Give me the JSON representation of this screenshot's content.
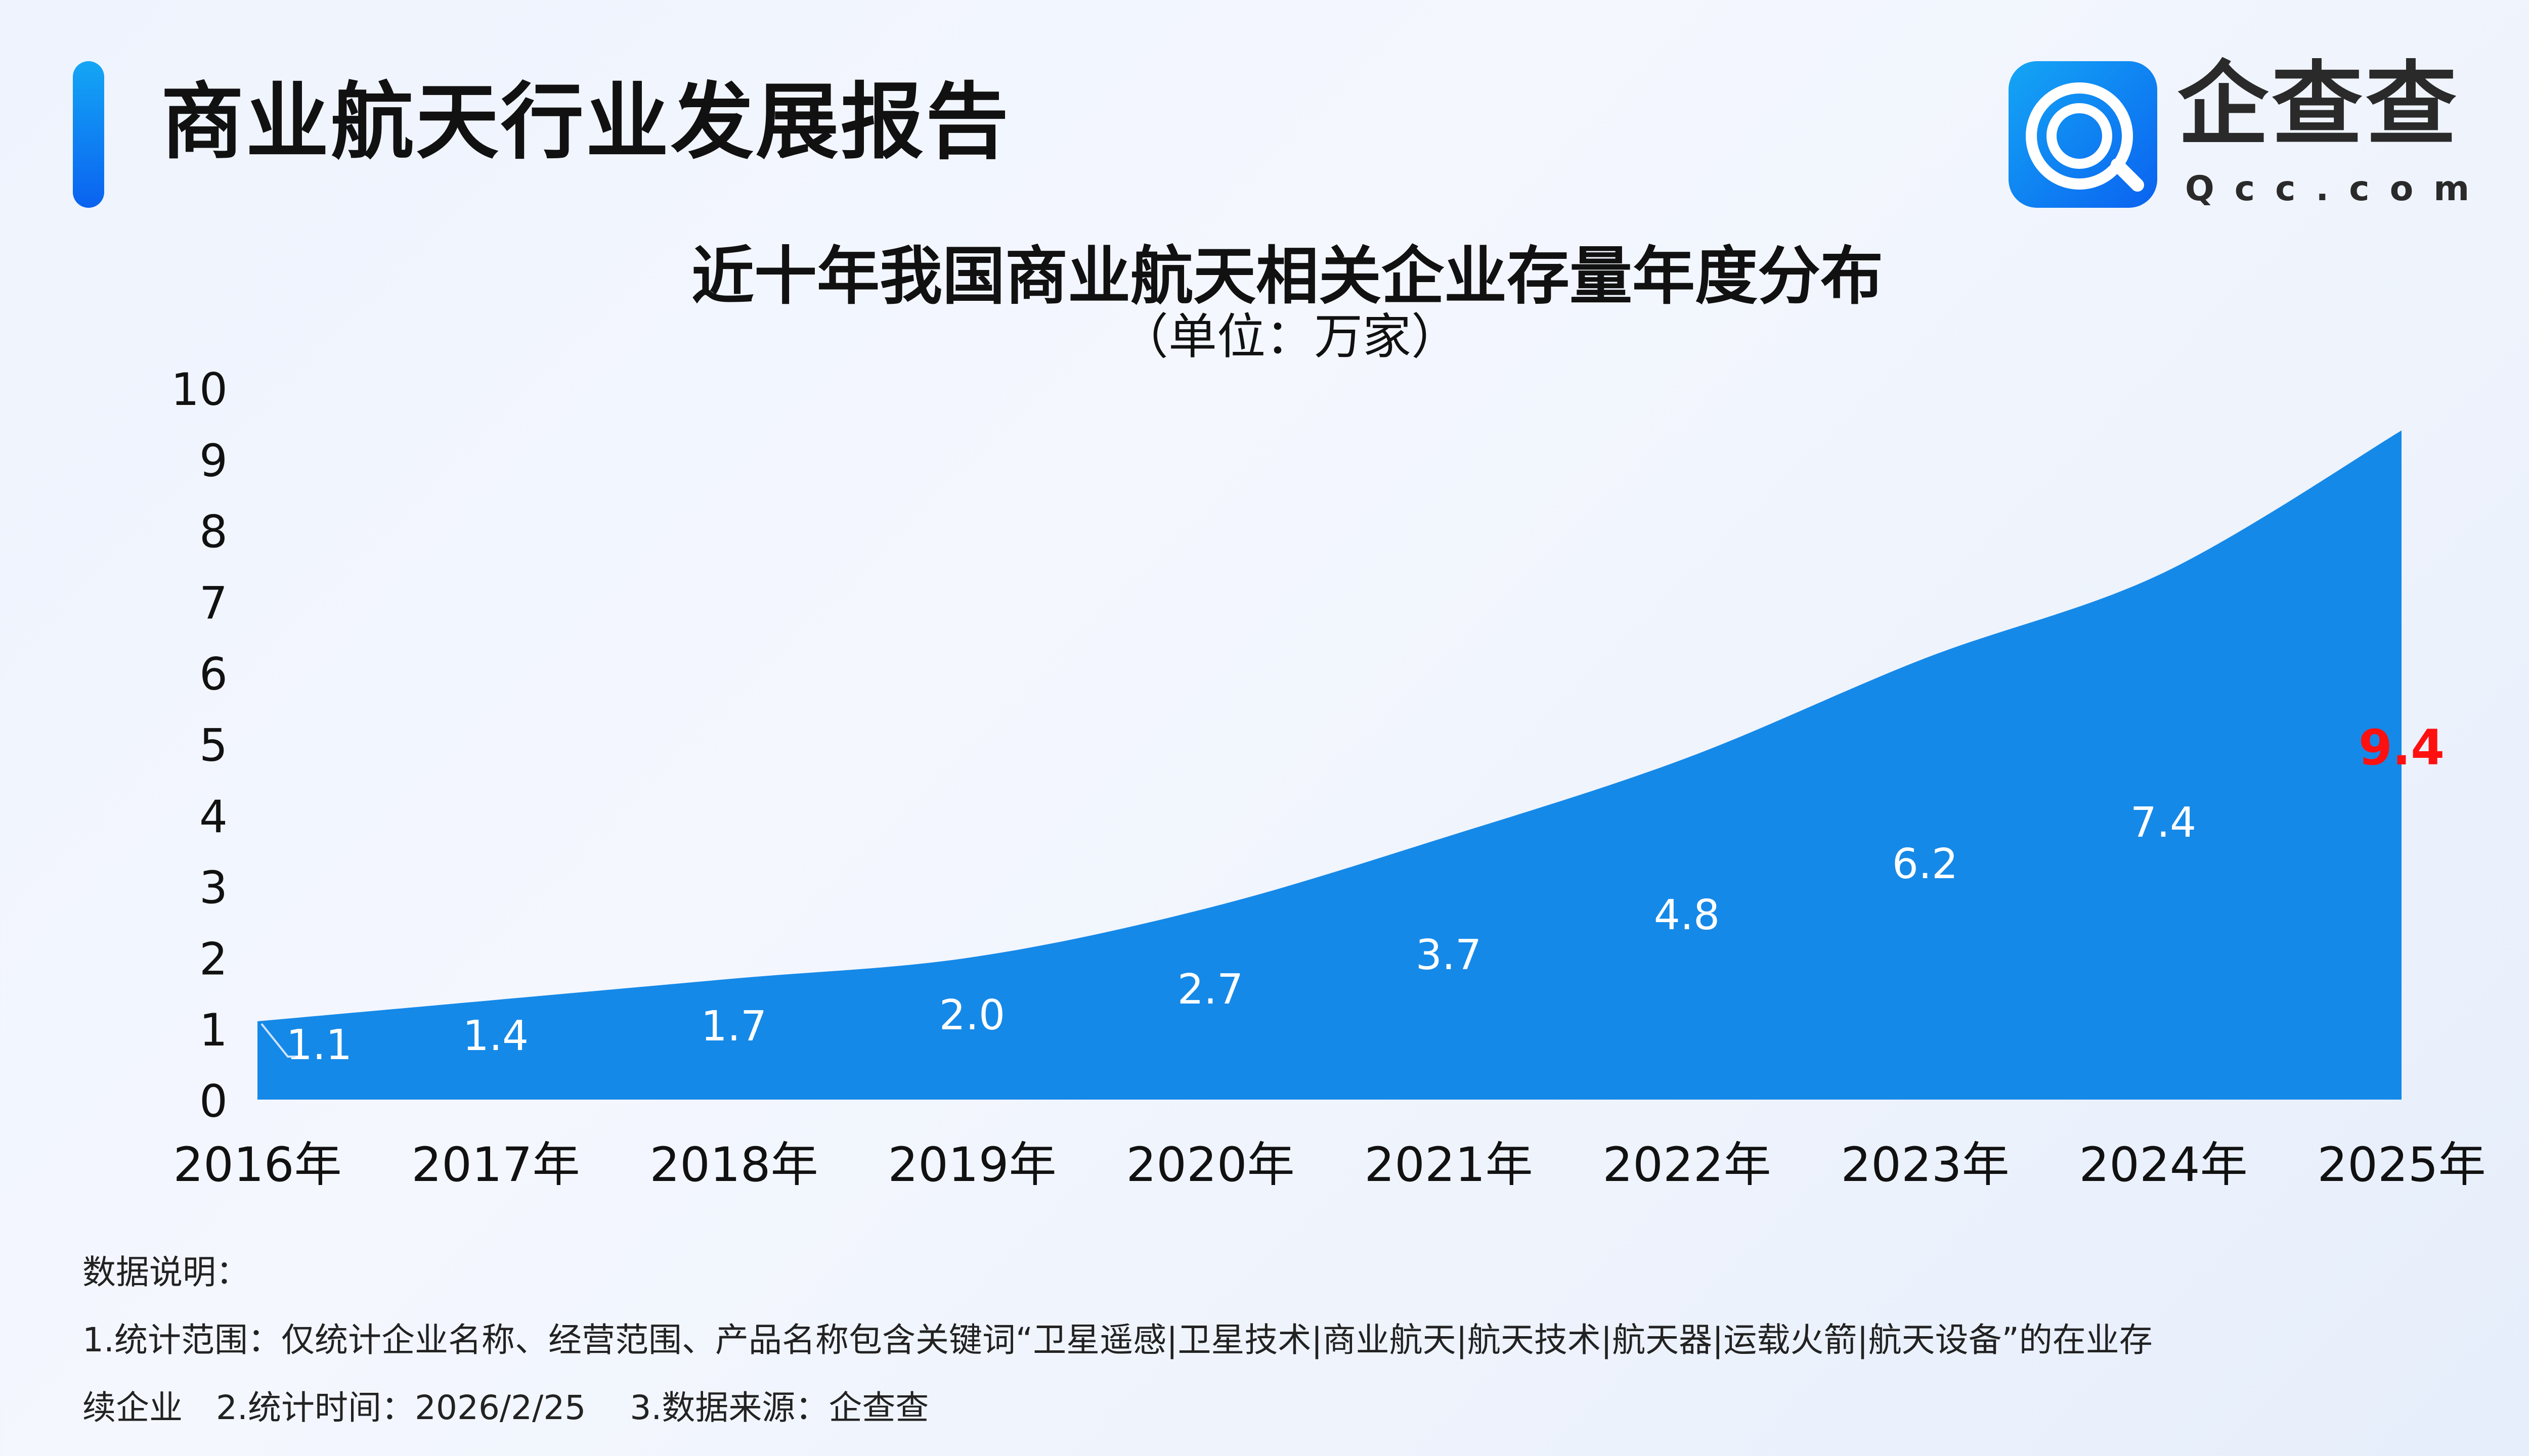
{
  "header": {
    "title": "商业航天行业发展报告"
  },
  "logo": {
    "name": "企查查",
    "domain": "Qcc.com"
  },
  "colors": {
    "area": "#1589e8",
    "highlight": "#ff1010",
    "accent": "#0a74f0"
  },
  "chart_data": {
    "type": "area",
    "title": "近十年我国商业航天相关企业存量年度分布",
    "subtitle": "（单位：万家）",
    "categories": [
      "2016年",
      "2017年",
      "2018年",
      "2019年",
      "2020年",
      "2021年",
      "2022年",
      "2023年",
      "2024年",
      "2025年"
    ],
    "values": [
      1.1,
      1.4,
      1.7,
      2.0,
      2.7,
      3.7,
      4.8,
      6.2,
      7.4,
      9.4
    ],
    "data_labels": [
      "1.1",
      "1.4",
      "1.7",
      "2.0",
      "2.7",
      "3.7",
      "4.8",
      "6.2",
      "7.4",
      "9.4"
    ],
    "ylim": [
      0,
      10
    ],
    "yticks": [
      "0",
      "1",
      "2",
      "3",
      "4",
      "5",
      "6",
      "7",
      "8",
      "9",
      "10"
    ],
    "grid": false,
    "highlight_index": 9
  },
  "notes": {
    "heading": "数据说明：",
    "line1": "1.统计范围：仅统计企业名称、经营范围、产品名称包含关键词“卫星遥感|卫星技术|商业航天|航天技术|航天器|运载火箭|航天设备”的在业存",
    "line2": "续企业　2.统计时间：2026/2/25　 3.数据来源：企查查"
  }
}
